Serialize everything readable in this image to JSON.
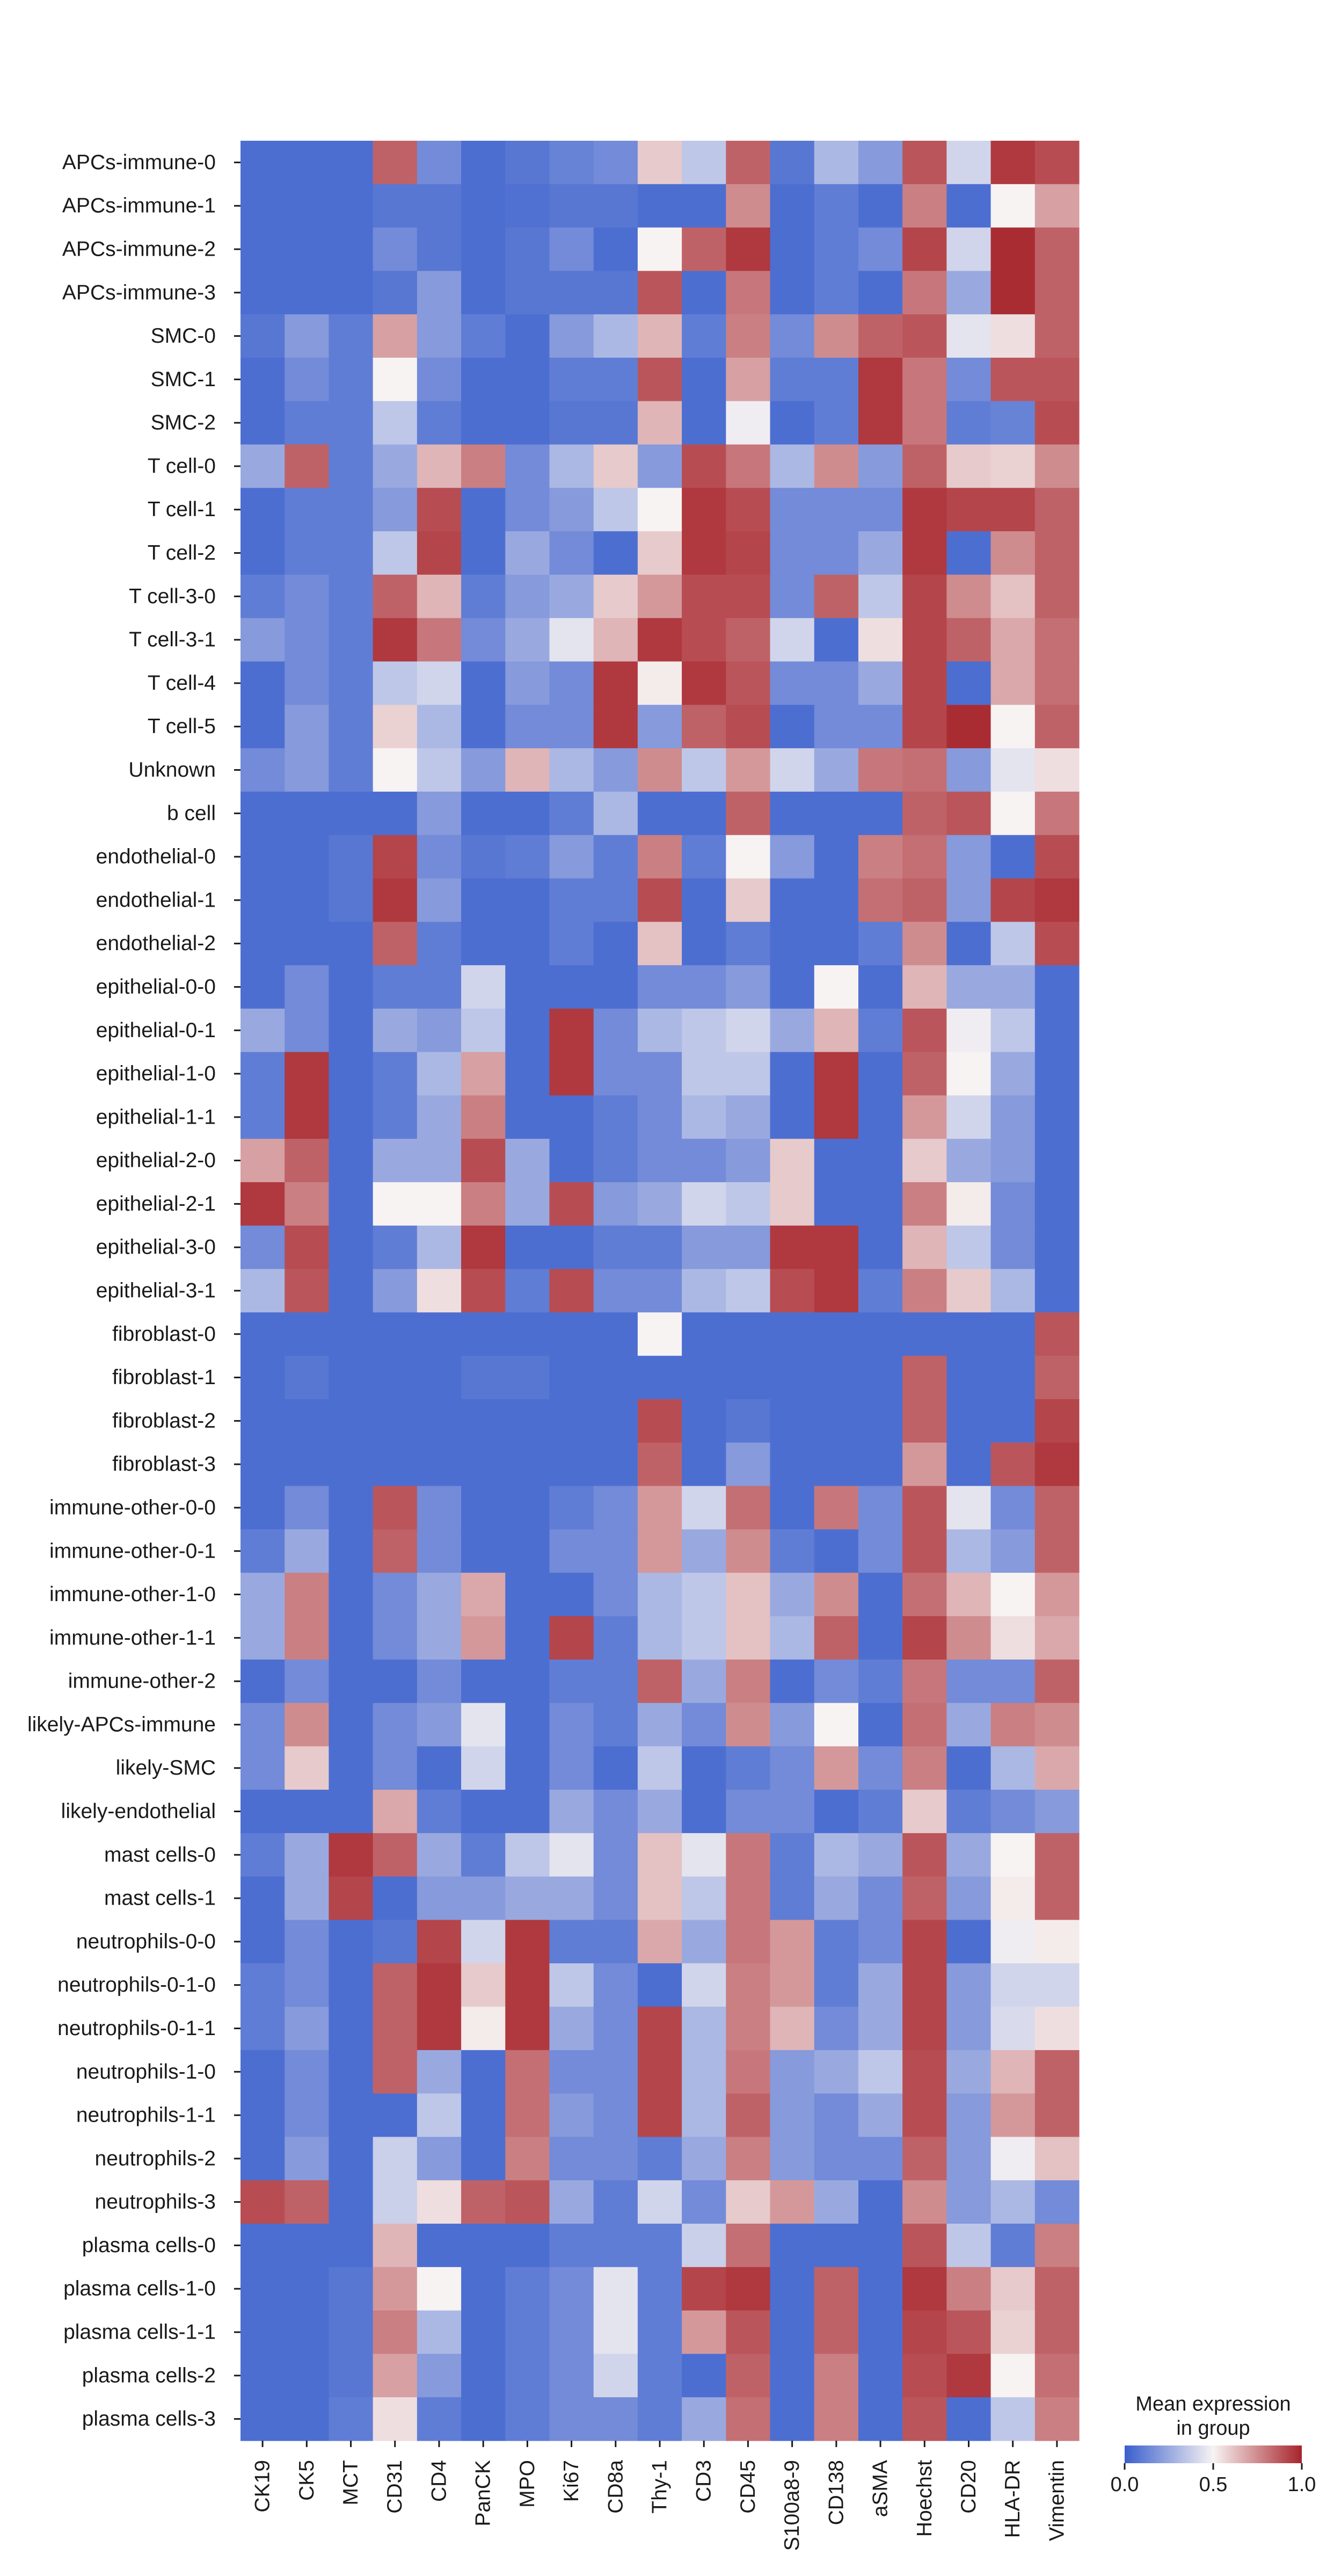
{
  "chart_data": {
    "type": "heatmap",
    "title": "",
    "xlabel": "",
    "ylabel": "",
    "columns": [
      "CK19",
      "CK5",
      "MCT",
      "CD31",
      "CD4",
      "PanCK",
      "MPO",
      "Ki67",
      "CD8a",
      "Thy-1",
      "CD3",
      "CD45",
      "S100a8-9",
      "CD138",
      "aSMA",
      "Hoechst",
      "CD20",
      "HLA-DR",
      "Vimentin"
    ],
    "rows": [
      "APCs-immune-0",
      "APCs-immune-1",
      "APCs-immune-2",
      "APCs-immune-3",
      "SMC-0",
      "SMC-1",
      "SMC-2",
      "T cell-0",
      "T cell-1",
      "T cell-2",
      "T cell-3-0",
      "T cell-3-1",
      "T cell-4",
      "T cell-5",
      "Unknown",
      "b cell",
      "endothelial-0",
      "endothelial-1",
      "endothelial-2",
      "epithelial-0-0",
      "epithelial-0-1",
      "epithelial-1-0",
      "epithelial-1-1",
      "epithelial-2-0",
      "epithelial-2-1",
      "epithelial-3-0",
      "epithelial-3-1",
      "fibroblast-0",
      "fibroblast-1",
      "fibroblast-2",
      "fibroblast-3",
      "immune-other-0-0",
      "immune-other-0-1",
      "immune-other-1-0",
      "immune-other-1-1",
      "immune-other-2",
      "likely-APCs-immune",
      "likely-SMC",
      "likely-endothelial",
      "mast cells-0",
      "mast cells-1",
      "neutrophils-0-0",
      "neutrophils-0-1-0",
      "neutrophils-0-1-1",
      "neutrophils-1-0",
      "neutrophils-1-1",
      "neutrophils-2",
      "neutrophils-3",
      "plasma cells-0",
      "plasma cells-1-0",
      "plasma cells-1-1",
      "plasma cells-2",
      "plasma cells-3"
    ],
    "values": [
      [
        0.05,
        0.05,
        0.05,
        0.85,
        0.15,
        0.05,
        0.08,
        0.12,
        0.15,
        0.6,
        0.35,
        0.85,
        0.08,
        0.3,
        0.2,
        0.88,
        0.4,
        0.95,
        0.9
      ],
      [
        0.05,
        0.05,
        0.05,
        0.08,
        0.08,
        0.05,
        0.06,
        0.08,
        0.08,
        0.05,
        0.05,
        0.75,
        0.05,
        0.1,
        0.05,
        0.78,
        0.05,
        0.5,
        0.7
      ],
      [
        0.05,
        0.05,
        0.05,
        0.15,
        0.08,
        0.05,
        0.08,
        0.15,
        0.05,
        0.5,
        0.85,
        0.95,
        0.05,
        0.1,
        0.15,
        0.92,
        0.4,
        0.98,
        0.85
      ],
      [
        0.05,
        0.05,
        0.05,
        0.08,
        0.2,
        0.05,
        0.08,
        0.08,
        0.08,
        0.88,
        0.05,
        0.8,
        0.05,
        0.1,
        0.05,
        0.8,
        0.25,
        0.98,
        0.85
      ],
      [
        0.08,
        0.2,
        0.1,
        0.7,
        0.2,
        0.1,
        0.05,
        0.2,
        0.3,
        0.65,
        0.1,
        0.78,
        0.15,
        0.75,
        0.85,
        0.88,
        0.45,
        0.55,
        0.85
      ],
      [
        0.05,
        0.15,
        0.1,
        0.5,
        0.15,
        0.05,
        0.05,
        0.1,
        0.1,
        0.88,
        0.05,
        0.7,
        0.1,
        0.1,
        0.95,
        0.8,
        0.15,
        0.88,
        0.88
      ],
      [
        0.05,
        0.1,
        0.1,
        0.35,
        0.1,
        0.05,
        0.05,
        0.08,
        0.08,
        0.65,
        0.05,
        0.48,
        0.05,
        0.1,
        0.95,
        0.8,
        0.1,
        0.12,
        0.9
      ],
      [
        0.25,
        0.85,
        0.1,
        0.25,
        0.65,
        0.78,
        0.15,
        0.3,
        0.6,
        0.2,
        0.9,
        0.8,
        0.3,
        0.75,
        0.2,
        0.85,
        0.6,
        0.58,
        0.75
      ],
      [
        0.05,
        0.1,
        0.1,
        0.2,
        0.9,
        0.05,
        0.15,
        0.2,
        0.35,
        0.5,
        0.95,
        0.9,
        0.15,
        0.15,
        0.15,
        0.95,
        0.92,
        0.92,
        0.85
      ],
      [
        0.05,
        0.1,
        0.1,
        0.35,
        0.92,
        0.05,
        0.25,
        0.15,
        0.05,
        0.6,
        0.95,
        0.92,
        0.15,
        0.15,
        0.25,
        0.95,
        0.05,
        0.75,
        0.85
      ],
      [
        0.1,
        0.15,
        0.1,
        0.85,
        0.65,
        0.1,
        0.2,
        0.25,
        0.6,
        0.72,
        0.9,
        0.9,
        0.15,
        0.85,
        0.35,
        0.92,
        0.75,
        0.62,
        0.85
      ],
      [
        0.2,
        0.15,
        0.1,
        0.95,
        0.8,
        0.15,
        0.25,
        0.45,
        0.65,
        0.95,
        0.9,
        0.85,
        0.4,
        0.05,
        0.55,
        0.92,
        0.85,
        0.68,
        0.82
      ],
      [
        0.05,
        0.15,
        0.1,
        0.35,
        0.4,
        0.05,
        0.2,
        0.15,
        0.95,
        0.52,
        0.95,
        0.88,
        0.15,
        0.15,
        0.25,
        0.92,
        0.05,
        0.68,
        0.82
      ],
      [
        0.05,
        0.2,
        0.1,
        0.58,
        0.3,
        0.05,
        0.15,
        0.15,
        0.95,
        0.2,
        0.85,
        0.9,
        0.05,
        0.15,
        0.15,
        0.92,
        0.98,
        0.5,
        0.85
      ],
      [
        0.15,
        0.2,
        0.1,
        0.5,
        0.35,
        0.2,
        0.65,
        0.3,
        0.2,
        0.75,
        0.35,
        0.72,
        0.4,
        0.25,
        0.8,
        0.82,
        0.2,
        0.45,
        0.55
      ],
      [
        0.05,
        0.05,
        0.05,
        0.05,
        0.2,
        0.05,
        0.05,
        0.1,
        0.3,
        0.05,
        0.05,
        0.85,
        0.05,
        0.05,
        0.05,
        0.85,
        0.88,
        0.5,
        0.8
      ],
      [
        0.05,
        0.05,
        0.08,
        0.92,
        0.15,
        0.08,
        0.1,
        0.2,
        0.1,
        0.78,
        0.1,
        0.5,
        0.2,
        0.05,
        0.78,
        0.82,
        0.2,
        0.05,
        0.9
      ],
      [
        0.05,
        0.05,
        0.08,
        0.95,
        0.2,
        0.05,
        0.05,
        0.1,
        0.1,
        0.9,
        0.05,
        0.6,
        0.05,
        0.05,
        0.82,
        0.85,
        0.2,
        0.92,
        0.95
      ],
      [
        0.05,
        0.05,
        0.05,
        0.85,
        0.1,
        0.05,
        0.05,
        0.1,
        0.05,
        0.62,
        0.05,
        0.1,
        0.05,
        0.05,
        0.1,
        0.75,
        0.05,
        0.35,
        0.9
      ],
      [
        0.05,
        0.15,
        0.05,
        0.1,
        0.1,
        0.4,
        0.05,
        0.05,
        0.05,
        0.15,
        0.15,
        0.2,
        0.05,
        0.5,
        0.05,
        0.65,
        0.25,
        0.25,
        0.05
      ],
      [
        0.25,
        0.15,
        0.05,
        0.25,
        0.2,
        0.35,
        0.05,
        0.95,
        0.15,
        0.3,
        0.35,
        0.4,
        0.25,
        0.65,
        0.1,
        0.88,
        0.48,
        0.35,
        0.05
      ],
      [
        0.1,
        0.95,
        0.05,
        0.1,
        0.3,
        0.7,
        0.05,
        0.95,
        0.15,
        0.15,
        0.35,
        0.35,
        0.05,
        0.95,
        0.05,
        0.85,
        0.5,
        0.25,
        0.05
      ],
      [
        0.1,
        0.95,
        0.05,
        0.1,
        0.25,
        0.78,
        0.05,
        0.05,
        0.1,
        0.15,
        0.3,
        0.25,
        0.05,
        0.95,
        0.05,
        0.72,
        0.4,
        0.2,
        0.05
      ],
      [
        0.7,
        0.85,
        0.05,
        0.25,
        0.25,
        0.9,
        0.25,
        0.05,
        0.1,
        0.15,
        0.15,
        0.2,
        0.6,
        0.05,
        0.05,
        0.6,
        0.25,
        0.2,
        0.05
      ],
      [
        0.95,
        0.78,
        0.05,
        0.5,
        0.5,
        0.78,
        0.25,
        0.9,
        0.2,
        0.25,
        0.4,
        0.35,
        0.6,
        0.05,
        0.05,
        0.78,
        0.52,
        0.15,
        0.05
      ],
      [
        0.15,
        0.9,
        0.05,
        0.1,
        0.3,
        0.95,
        0.05,
        0.05,
        0.1,
        0.1,
        0.2,
        0.2,
        0.95,
        0.95,
        0.05,
        0.65,
        0.35,
        0.15,
        0.05
      ],
      [
        0.3,
        0.88,
        0.05,
        0.2,
        0.55,
        0.9,
        0.1,
        0.9,
        0.15,
        0.15,
        0.3,
        0.35,
        0.9,
        0.95,
        0.1,
        0.78,
        0.6,
        0.3,
        0.05
      ],
      [
        0.05,
        0.05,
        0.05,
        0.05,
        0.05,
        0.05,
        0.05,
        0.05,
        0.05,
        0.5,
        0.05,
        0.05,
        0.05,
        0.05,
        0.05,
        0.05,
        0.05,
        0.05,
        0.88
      ],
      [
        0.05,
        0.08,
        0.05,
        0.05,
        0.05,
        0.08,
        0.08,
        0.05,
        0.05,
        0.05,
        0.05,
        0.05,
        0.05,
        0.05,
        0.05,
        0.85,
        0.05,
        0.05,
        0.85
      ],
      [
        0.05,
        0.05,
        0.05,
        0.05,
        0.05,
        0.05,
        0.05,
        0.05,
        0.05,
        0.9,
        0.05,
        0.08,
        0.05,
        0.05,
        0.05,
        0.85,
        0.05,
        0.05,
        0.92
      ],
      [
        0.05,
        0.05,
        0.05,
        0.05,
        0.05,
        0.05,
        0.05,
        0.05,
        0.05,
        0.85,
        0.05,
        0.2,
        0.05,
        0.05,
        0.05,
        0.72,
        0.05,
        0.88,
        0.95
      ],
      [
        0.05,
        0.15,
        0.05,
        0.88,
        0.15,
        0.05,
        0.05,
        0.1,
        0.15,
        0.72,
        0.4,
        0.82,
        0.05,
        0.8,
        0.15,
        0.88,
        0.45,
        0.15,
        0.85
      ],
      [
        0.1,
        0.25,
        0.05,
        0.85,
        0.15,
        0.05,
        0.05,
        0.15,
        0.15,
        0.72,
        0.25,
        0.75,
        0.1,
        0.05,
        0.15,
        0.88,
        0.3,
        0.2,
        0.85
      ],
      [
        0.25,
        0.78,
        0.05,
        0.15,
        0.25,
        0.68,
        0.05,
        0.05,
        0.15,
        0.3,
        0.35,
        0.62,
        0.25,
        0.75,
        0.05,
        0.82,
        0.65,
        0.5,
        0.72
      ],
      [
        0.25,
        0.78,
        0.05,
        0.15,
        0.25,
        0.72,
        0.05,
        0.92,
        0.1,
        0.3,
        0.35,
        0.62,
        0.3,
        0.85,
        0.05,
        0.92,
        0.75,
        0.55,
        0.68
      ],
      [
        0.05,
        0.15,
        0.05,
        0.05,
        0.15,
        0.05,
        0.05,
        0.1,
        0.1,
        0.85,
        0.25,
        0.78,
        0.05,
        0.15,
        0.1,
        0.8,
        0.15,
        0.15,
        0.85
      ],
      [
        0.15,
        0.75,
        0.05,
        0.15,
        0.2,
        0.45,
        0.05,
        0.15,
        0.1,
        0.25,
        0.15,
        0.75,
        0.2,
        0.5,
        0.05,
        0.82,
        0.25,
        0.78,
        0.75
      ],
      [
        0.15,
        0.6,
        0.05,
        0.15,
        0.05,
        0.4,
        0.05,
        0.15,
        0.05,
        0.35,
        0.05,
        0.1,
        0.15,
        0.72,
        0.15,
        0.78,
        0.05,
        0.3,
        0.68
      ],
      [
        0.05,
        0.05,
        0.05,
        0.68,
        0.1,
        0.05,
        0.05,
        0.25,
        0.15,
        0.25,
        0.05,
        0.15,
        0.15,
        0.05,
        0.1,
        0.6,
        0.1,
        0.15,
        0.2
      ],
      [
        0.1,
        0.25,
        0.95,
        0.85,
        0.25,
        0.1,
        0.35,
        0.45,
        0.15,
        0.62,
        0.45,
        0.8,
        0.1,
        0.3,
        0.25,
        0.88,
        0.25,
        0.5,
        0.85
      ],
      [
        0.05,
        0.25,
        0.92,
        0.05,
        0.2,
        0.2,
        0.25,
        0.25,
        0.15,
        0.62,
        0.35,
        0.8,
        0.1,
        0.25,
        0.15,
        0.85,
        0.2,
        0.52,
        0.85
      ],
      [
        0.05,
        0.15,
        0.05,
        0.08,
        0.92,
        0.4,
        0.95,
        0.1,
        0.1,
        0.68,
        0.25,
        0.8,
        0.72,
        0.1,
        0.15,
        0.92,
        0.05,
        0.48,
        0.52
      ],
      [
        0.1,
        0.15,
        0.05,
        0.85,
        0.95,
        0.6,
        0.95,
        0.35,
        0.15,
        0.05,
        0.4,
        0.78,
        0.72,
        0.1,
        0.25,
        0.92,
        0.2,
        0.4,
        0.4
      ],
      [
        0.1,
        0.2,
        0.05,
        0.85,
        0.95,
        0.52,
        0.95,
        0.25,
        0.15,
        0.92,
        0.3,
        0.78,
        0.65,
        0.15,
        0.25,
        0.92,
        0.2,
        0.42,
        0.55
      ],
      [
        0.05,
        0.15,
        0.05,
        0.85,
        0.25,
        0.05,
        0.82,
        0.15,
        0.15,
        0.92,
        0.3,
        0.8,
        0.2,
        0.25,
        0.35,
        0.9,
        0.25,
        0.65,
        0.85
      ],
      [
        0.05,
        0.15,
        0.05,
        0.05,
        0.35,
        0.05,
        0.82,
        0.2,
        0.15,
        0.92,
        0.3,
        0.85,
        0.2,
        0.15,
        0.25,
        0.9,
        0.2,
        0.72,
        0.85
      ],
      [
        0.05,
        0.2,
        0.05,
        0.38,
        0.2,
        0.05,
        0.78,
        0.15,
        0.15,
        0.1,
        0.25,
        0.78,
        0.2,
        0.15,
        0.15,
        0.85,
        0.2,
        0.48,
        0.62
      ],
      [
        0.9,
        0.85,
        0.05,
        0.38,
        0.55,
        0.85,
        0.88,
        0.25,
        0.1,
        0.4,
        0.15,
        0.6,
        0.72,
        0.25,
        0.05,
        0.75,
        0.2,
        0.3,
        0.15
      ],
      [
        0.05,
        0.05,
        0.05,
        0.65,
        0.05,
        0.05,
        0.05,
        0.1,
        0.1,
        0.1,
        0.38,
        0.82,
        0.05,
        0.05,
        0.05,
        0.88,
        0.35,
        0.1,
        0.78
      ],
      [
        0.05,
        0.05,
        0.08,
        0.72,
        0.5,
        0.05,
        0.1,
        0.15,
        0.45,
        0.1,
        0.92,
        0.95,
        0.05,
        0.85,
        0.05,
        0.95,
        0.78,
        0.6,
        0.85
      ],
      [
        0.05,
        0.05,
        0.08,
        0.78,
        0.3,
        0.05,
        0.1,
        0.15,
        0.45,
        0.1,
        0.72,
        0.88,
        0.05,
        0.85,
        0.05,
        0.92,
        0.88,
        0.58,
        0.85
      ],
      [
        0.05,
        0.05,
        0.08,
        0.7,
        0.2,
        0.05,
        0.1,
        0.15,
        0.4,
        0.1,
        0.05,
        0.85,
        0.05,
        0.78,
        0.05,
        0.9,
        0.95,
        0.5,
        0.82
      ],
      [
        0.05,
        0.05,
        0.1,
        0.55,
        0.1,
        0.05,
        0.1,
        0.15,
        0.15,
        0.1,
        0.25,
        0.82,
        0.05,
        0.78,
        0.05,
        0.88,
        0.05,
        0.35,
        0.78
      ]
    ],
    "vmin": 0.0,
    "vmax": 1.0,
    "colormap": [
      "#3a5fcd",
      "#f7f3f3",
      "#a7242b"
    ],
    "colorbar": {
      "title_line1": "Mean expression",
      "title_line2": "in group",
      "ticks": [
        "0.0",
        "0.5",
        "1.0"
      ],
      "tick_values": [
        0.0,
        0.5,
        1.0
      ]
    },
    "grid": false,
    "legend_placement": "bottom-right"
  }
}
